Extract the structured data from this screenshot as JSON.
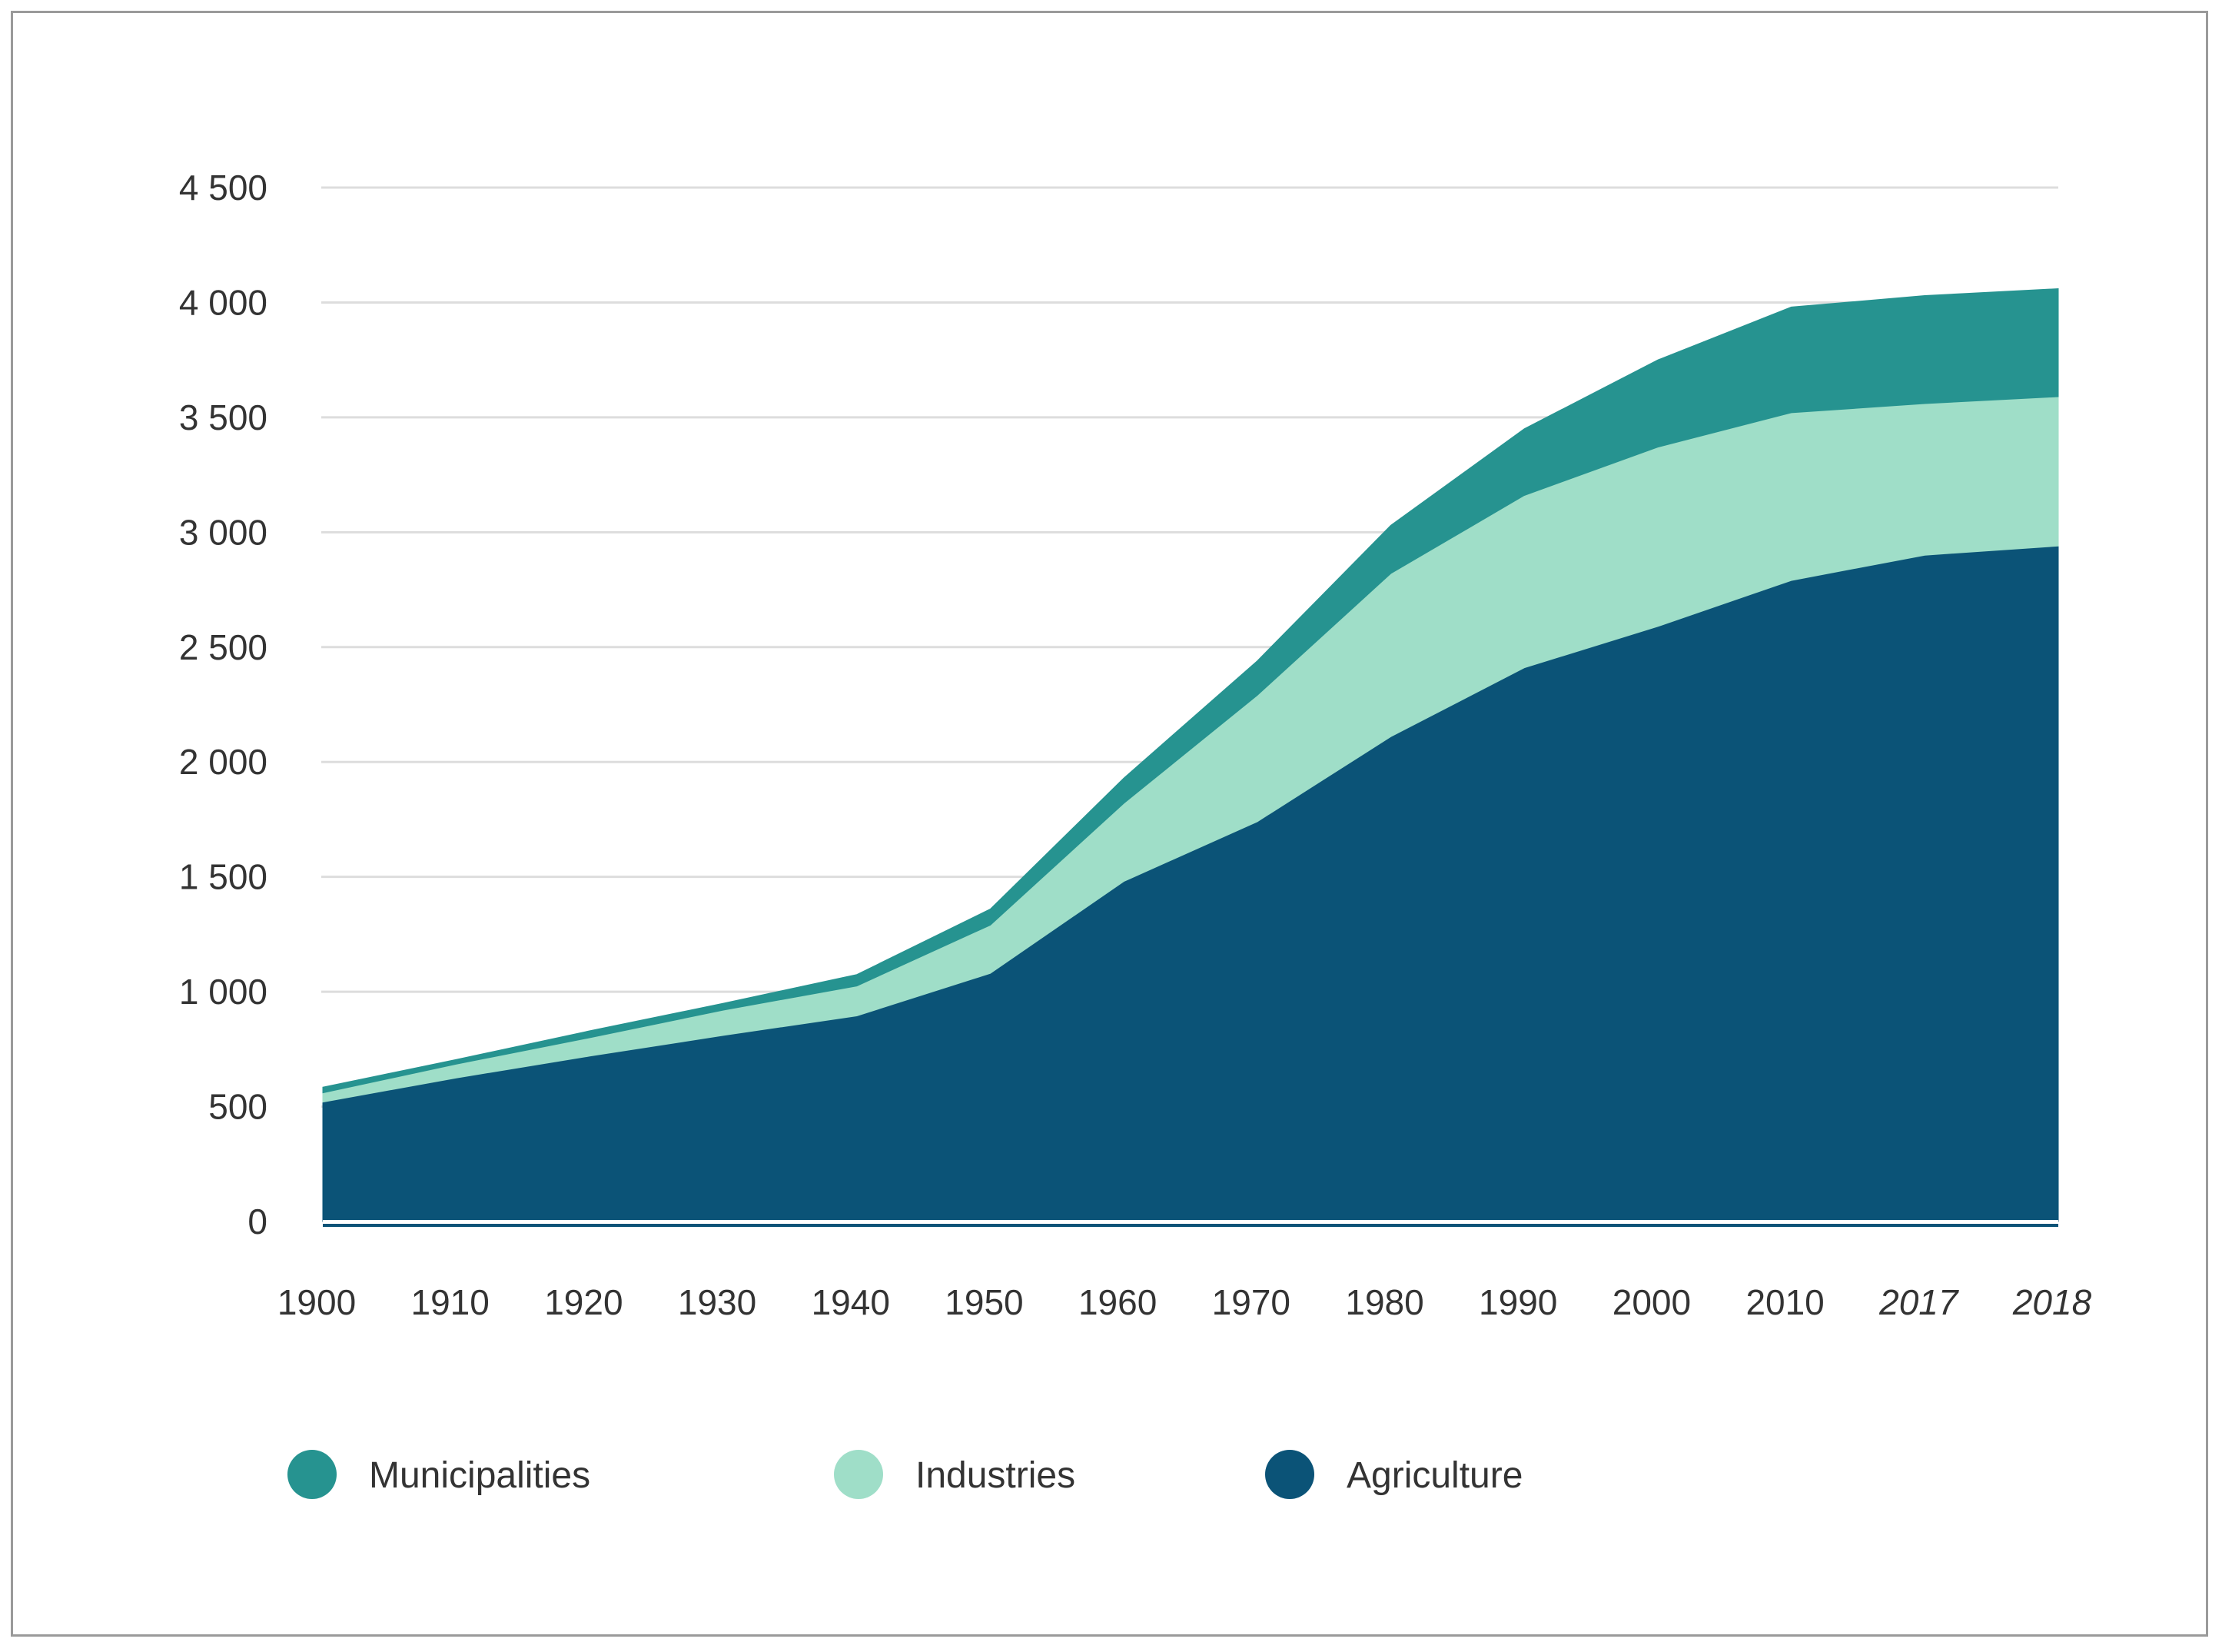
{
  "chart_data": {
    "type": "area",
    "stacked": true,
    "title": "",
    "xlabel": "",
    "ylabel": "",
    "ylim": [
      0,
      4500
    ],
    "yticks": [
      0,
      500,
      1000,
      1500,
      2000,
      2500,
      3000,
      3500,
      4000,
      4500
    ],
    "ytick_labels": [
      "0",
      "500",
      "1 000",
      "1 500",
      "2 000",
      "2 500",
      "3 000",
      "3 500",
      "4 000",
      "4 500"
    ],
    "grid": true,
    "legend_position": "bottom",
    "categories": [
      "1900",
      "1910",
      "1920",
      "1930",
      "1940",
      "1950",
      "1960",
      "1970",
      "1980",
      "1990",
      "2000",
      "2010",
      "2017",
      "2018"
    ],
    "italic_categories": [
      "2017",
      "2018"
    ],
    "series": [
      {
        "name": "Agriculture",
        "color": "#0b5377",
        "values": [
          520,
          625,
          720,
          810,
          895,
          1080,
          1480,
          1740,
          2110,
          2410,
          2590,
          2790,
          2900,
          2940
        ]
      },
      {
        "name": "Industries",
        "color": "#9fdec8",
        "values": [
          40,
          60,
          80,
          110,
          130,
          210,
          340,
          550,
          710,
          750,
          780,
          730,
          660,
          650
        ]
      },
      {
        "name": "Municipalities",
        "color": "#269390",
        "values": [
          25,
          20,
          30,
          30,
          50,
          70,
          110,
          150,
          210,
          290,
          380,
          460,
          470,
          470
        ]
      }
    ],
    "legend": [
      {
        "label": "Municipalities",
        "color": "#269390"
      },
      {
        "label": "Industries",
        "color": "#9fdec8"
      },
      {
        "label": "Agriculture",
        "color": "#0b5377"
      }
    ]
  }
}
